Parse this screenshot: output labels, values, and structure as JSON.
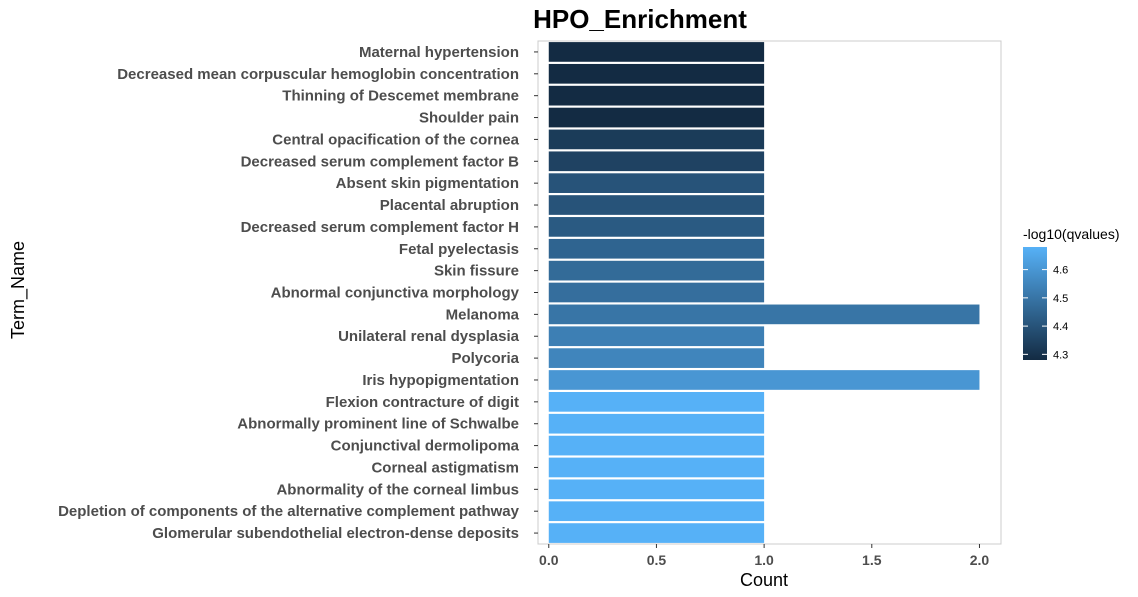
{
  "chart_data": {
    "type": "bar",
    "orientation": "horizontal",
    "title": "HPO_Enrichment",
    "xlabel": "Count",
    "ylabel": "Term_Name",
    "xlim": [
      -0.05,
      2.1
    ],
    "xticks": [
      0.0,
      0.5,
      1.0,
      1.5,
      2.0
    ],
    "xtick_labels": [
      "0.0",
      "0.5",
      "1.0",
      "1.5",
      "2.0"
    ],
    "categories": [
      "Maternal hypertension",
      "Decreased mean corpuscular hemoglobin concentration",
      "Thinning of Descemet membrane",
      "Shoulder pain",
      "Central opacification of the cornea",
      "Decreased serum complement factor B",
      "Absent skin pigmentation",
      "Placental abruption",
      "Decreased serum complement factor H",
      "Fetal pyelectasis",
      "Skin fissure",
      "Abnormal conjunctiva morphology",
      "Melanoma",
      "Unilateral renal dysplasia",
      "Polycoria",
      "Iris hypopigmentation",
      "Flexion contracture of digit",
      "Abnormally prominent line of Schwalbe",
      "Conjunctival dermolipoma",
      "Corneal astigmatism",
      "Abnormality of the corneal limbus",
      "Depletion of components of the alternative complement pathway",
      "Glomerular subendothelial electron-dense deposits"
    ],
    "values": [
      1,
      1,
      1,
      1,
      1,
      1,
      1,
      1,
      1,
      1,
      1,
      1,
      2,
      1,
      1,
      2,
      1,
      1,
      1,
      1,
      1,
      1,
      1
    ],
    "color_values": [
      4.28,
      4.28,
      4.28,
      4.28,
      4.33,
      4.35,
      4.4,
      4.4,
      4.42,
      4.45,
      4.47,
      4.48,
      4.5,
      4.53,
      4.55,
      4.6,
      4.68,
      4.68,
      4.68,
      4.68,
      4.68,
      4.68,
      4.68
    ],
    "legend": {
      "title": "-log10(qvalues)",
      "placement": "right",
      "range": [
        4.28,
        4.68
      ],
      "ticks": [
        4.3,
        4.4,
        4.5,
        4.6
      ],
      "tick_labels": [
        "4.3",
        "4.4",
        "4.5",
        "4.6"
      ],
      "low_color": "#132B43",
      "high_color": "#56B1F7"
    },
    "grid": false,
    "panel_border": true
  }
}
